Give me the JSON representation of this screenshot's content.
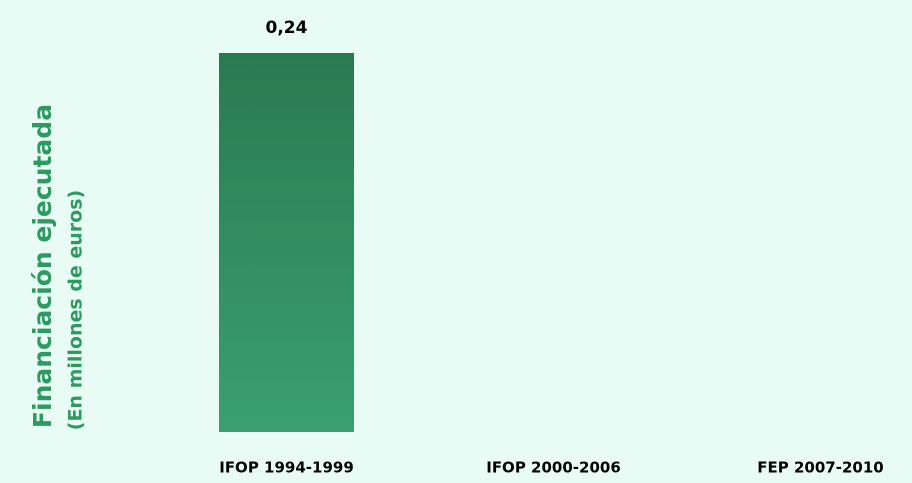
{
  "chart_data": {
    "type": "bar",
    "y_label": [
      "Financiación ejecutada",
      "(En millones de euros)"
    ],
    "categories": [
      "IFOP 1994-1999",
      "IFOP 2000-2006",
      "FEP 2007-2010"
    ],
    "values": [
      0.24,
      null,
      null
    ],
    "value_labels": [
      "0,24",
      null,
      null
    ],
    "color": "#2f8a5c",
    "ylim": [
      0,
      0.24
    ]
  }
}
